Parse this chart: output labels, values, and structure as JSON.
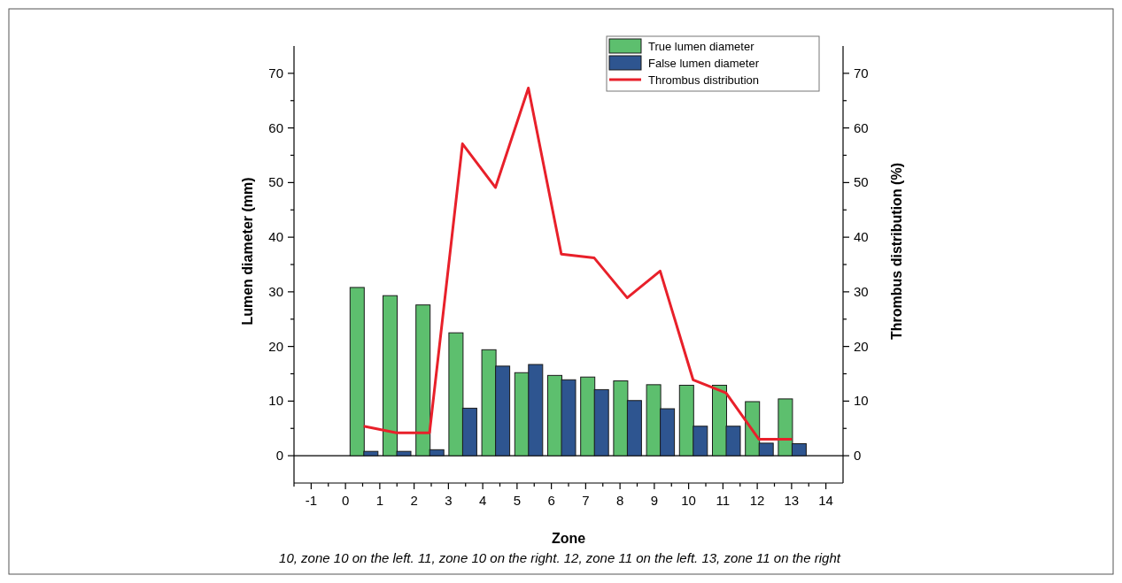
{
  "chart_data": {
    "type": "bar",
    "xlabel": "Zone",
    "ylabel": "Lumen diameter (mm)",
    "y2label": "Thrombus distribution (%)",
    "annotations": [
      "10, zone 10 on the left. 11, zone 10 on the right. 12, zone 11 on the left. 13, zone 11 on the right"
    ],
    "xlim": [
      -1.5,
      14.5
    ],
    "xticks": [
      {
        "value": -1.5,
        "label": null
      },
      -1,
      {
        "value": -0.5,
        "label": null
      },
      0,
      {
        "value": 0.5,
        "label": null
      },
      1,
      {
        "value": 1.5,
        "label": null
      },
      2,
      {
        "value": 2.5,
        "label": null
      },
      3,
      {
        "value": 3.5,
        "label": null
      },
      4,
      {
        "value": 4.5,
        "label": null
      },
      5,
      {
        "value": 5.5,
        "label": null
      },
      6,
      {
        "value": 6.5,
        "label": null
      },
      7,
      {
        "value": 7.5,
        "label": null
      },
      8,
      {
        "value": 8.5,
        "label": null
      },
      9,
      {
        "value": 9.5,
        "label": null
      },
      10,
      {
        "value": 10.5,
        "label": null
      },
      11,
      {
        "value": 11.5,
        "label": null
      },
      12,
      {
        "value": 12.5,
        "label": null
      },
      13,
      {
        "value": 13.5,
        "label": null
      },
      14
    ],
    "ylim": [
      -5,
      75
    ],
    "yticks": [
      0,
      {
        "value": 5,
        "label": null
      },
      10,
      {
        "value": 15,
        "label": null
      },
      20,
      {
        "value": 25,
        "label": null
      },
      30,
      {
        "value": 35,
        "label": null
      },
      40,
      {
        "value": 45,
        "label": null
      },
      50,
      {
        "value": 55,
        "label": null
      },
      60,
      {
        "value": 65,
        "label": null
      },
      70
    ],
    "y2lim": [
      -5,
      75
    ],
    "y2ticks": [
      0,
      {
        "value": 5,
        "label": null
      },
      10,
      {
        "value": 15,
        "label": null
      },
      20,
      {
        "value": 25,
        "label": null
      },
      30,
      {
        "value": 35,
        "label": null
      },
      40,
      {
        "value": 45,
        "label": null
      },
      50,
      {
        "value": 55,
        "label": null
      },
      60,
      {
        "value": 65,
        "label": null
      },
      70
    ],
    "ref_lines": [
      {
        "axis": "y",
        "value": 0,
        "color": "#000000"
      }
    ],
    "legend": "top right",
    "grid": false,
    "series": [
      {
        "name": "True lumen diameter",
        "color": "#5dbf6e",
        "x": [
          0.34,
          1.3,
          2.26,
          3.22,
          4.18,
          5.14,
          6.1,
          7.06,
          8.02,
          8.98,
          9.94,
          10.9,
          11.86,
          12.82
        ],
        "values": [
          30.8,
          29.3,
          27.6,
          22.5,
          19.4,
          15.2,
          14.7,
          14.4,
          13.7,
          13.0,
          12.9,
          12.9,
          9.9,
          10.4
        ]
      },
      {
        "name": "False lumen diameter",
        "color": "#2e5590",
        "x": [
          0.74,
          1.7,
          2.66,
          3.62,
          4.58,
          5.54,
          6.5,
          7.46,
          8.42,
          9.38,
          10.34,
          11.3,
          12.26,
          13.22
        ],
        "values": [
          0.8,
          0.8,
          1.1,
          8.7,
          16.4,
          16.7,
          13.9,
          12.1,
          10.1,
          8.6,
          5.4,
          5.4,
          2.3,
          2.2
        ]
      },
      {
        "name": "Thrombus distribution",
        "type": "line",
        "axis": "y2",
        "color": "#e8202a",
        "x": [
          0.53,
          1.49,
          2.45,
          3.41,
          4.37,
          5.33,
          6.29,
          7.25,
          8.21,
          9.17,
          10.13,
          11.09,
          12.05,
          13.01
        ],
        "values": [
          5.4,
          4.2,
          4.2,
          57.1,
          49.1,
          67.3,
          36.9,
          36.2,
          28.9,
          33.8,
          13.9,
          11.5,
          3.0,
          3.0
        ]
      }
    ]
  }
}
